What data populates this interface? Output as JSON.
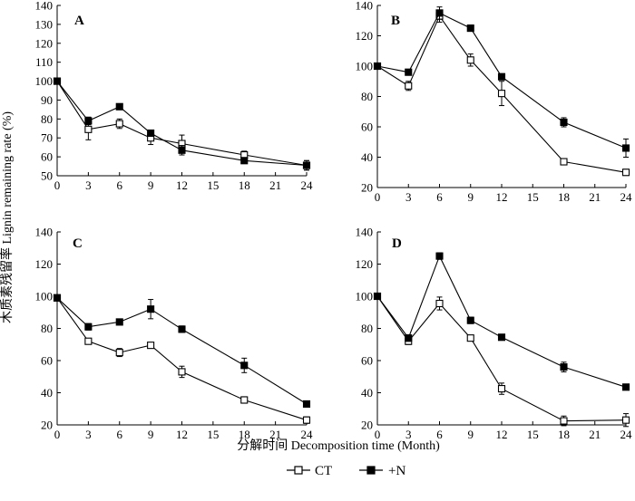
{
  "figure": {
    "ylabel": "木质素残留率 Lignin remaining rate (%)",
    "xlabel": "分解时间 Decomposition time (Month)",
    "legend": [
      {
        "label": "CT",
        "marker": "open-square",
        "color": "#000000"
      },
      {
        "label": "+N",
        "marker": "filled-square",
        "color": "#000000"
      }
    ]
  },
  "chart_data": [
    {
      "type": "line",
      "panel": "A",
      "x": [
        0,
        3,
        6,
        9,
        12,
        18,
        24
      ],
      "xticks": [
        0,
        3,
        6,
        9,
        12,
        15,
        18,
        21,
        24
      ],
      "xlim": [
        0,
        24
      ],
      "ylim": [
        50,
        140
      ],
      "yticks": [
        50,
        60,
        70,
        80,
        90,
        100,
        110,
        120,
        130,
        140
      ],
      "series": [
        {
          "name": "CT",
          "values": [
            100,
            74.5,
            77.5,
            70,
            67,
            61,
            55.5
          ],
          "errors": [
            0,
            5.5,
            2.5,
            3.5,
            4.5,
            2,
            2.5
          ]
        },
        {
          "name": "+N",
          "values": [
            100,
            79,
            86.5,
            72.5,
            63.5,
            58,
            55.5
          ],
          "errors": [
            0,
            2,
            1.5,
            1,
            2.5,
            1.5,
            2.5
          ]
        }
      ]
    },
    {
      "type": "line",
      "panel": "B",
      "x": [
        0,
        3,
        6,
        9,
        12,
        18,
        24
      ],
      "xticks": [
        0,
        3,
        6,
        9,
        12,
        15,
        18,
        21,
        24
      ],
      "xlim": [
        0,
        24
      ],
      "ylim": [
        20,
        140
      ],
      "yticks": [
        20,
        40,
        60,
        80,
        100,
        120,
        140
      ],
      "series": [
        {
          "name": "CT",
          "values": [
            100,
            87,
            133,
            104,
            82,
            37,
            30
          ],
          "errors": [
            0,
            3,
            4,
            4,
            8,
            2,
            2
          ]
        },
        {
          "name": "+N",
          "values": [
            100,
            96,
            135,
            125,
            93,
            63,
            46
          ],
          "errors": [
            0,
            1,
            4,
            2,
            2,
            3,
            6
          ]
        }
      ]
    },
    {
      "type": "line",
      "panel": "C",
      "x": [
        0,
        3,
        6,
        9,
        12,
        18,
        24
      ],
      "xticks": [
        0,
        3,
        6,
        9,
        12,
        15,
        18,
        21,
        24
      ],
      "xlim": [
        0,
        24
      ],
      "ylim": [
        20,
        140
      ],
      "yticks": [
        20,
        40,
        60,
        80,
        100,
        120,
        140
      ],
      "series": [
        {
          "name": "CT",
          "values": [
            99,
            72,
            65,
            69.5,
            53,
            35.5,
            23
          ],
          "errors": [
            0,
            1.5,
            2.5,
            1,
            3.5,
            2,
            2
          ]
        },
        {
          "name": "+N",
          "values": [
            99,
            81,
            84,
            92,
            79.5,
            57,
            33
          ],
          "errors": [
            0,
            2,
            1,
            6,
            2,
            4.5,
            1
          ]
        }
      ]
    },
    {
      "type": "line",
      "panel": "D",
      "x": [
        0,
        3,
        6,
        9,
        12,
        18,
        24
      ],
      "xticks": [
        0,
        3,
        6,
        9,
        12,
        15,
        18,
        21,
        24
      ],
      "xlim": [
        0,
        24
      ],
      "ylim": [
        20,
        140
      ],
      "yticks": [
        20,
        40,
        60,
        80,
        100,
        120,
        140
      ],
      "series": [
        {
          "name": "CT",
          "values": [
            100,
            72,
            95.5,
            74,
            42.5,
            22.5,
            23
          ],
          "errors": [
            0,
            2,
            4,
            1,
            3.5,
            3,
            4
          ]
        },
        {
          "name": "+N",
          "values": [
            100,
            74,
            125,
            85,
            74.5,
            56,
            43.5
          ],
          "errors": [
            0,
            2,
            2,
            2,
            1,
            3,
            1
          ]
        }
      ]
    }
  ]
}
